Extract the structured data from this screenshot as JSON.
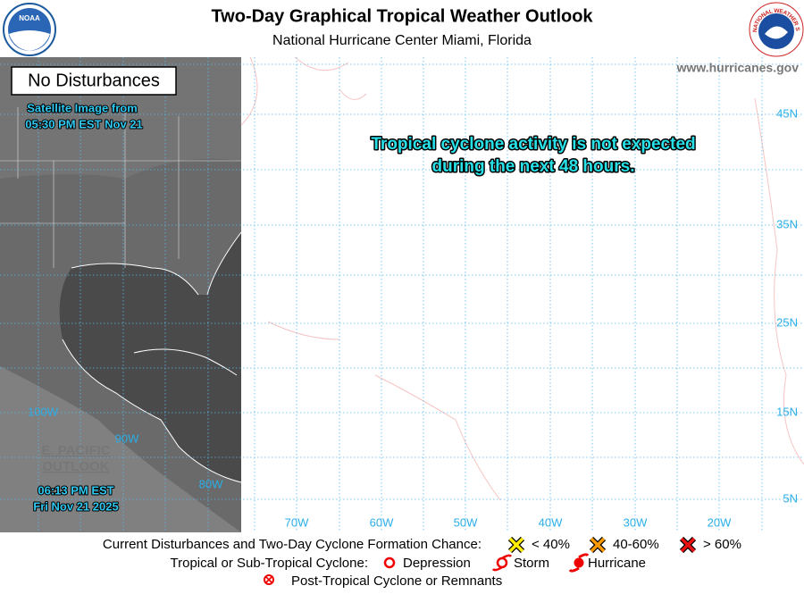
{
  "header": {
    "title": "Two-Day Graphical Tropical Weather Outlook",
    "subtitle": "National Hurricane Center  Miami, Florida",
    "noaa_logo": "NOAA",
    "nws_logo": "NATIONAL WEATHER SERVICE"
  },
  "map": {
    "status": "No Disturbances",
    "satellite_label": "Satellite Image from",
    "satellite_time": "05:30 PM EST Nov 21",
    "website": "www.hurricanes.gov",
    "message_line1": "Tropical cyclone activity is not expected",
    "message_line2": "during the next 48 hours.",
    "pacific_link_line1": "E. PACIFIC",
    "pacific_link_line2": "OUTLOOK",
    "issue_time": "06:13 PM EST",
    "issue_date": "Fri Nov 21 2025",
    "latitude_labels": [
      "45N",
      "35N",
      "25N",
      "15N",
      "5N"
    ],
    "longitude_labels": [
      "70W",
      "60W",
      "50W",
      "40W",
      "30W",
      "20W"
    ],
    "pacific_longitude_labels": [
      "100W",
      "90W",
      "80W"
    ]
  },
  "legend": {
    "row1_label": "Current Disturbances and Two-Day Cyclone Formation Chance:",
    "chance_low": "< 40%",
    "chance_mid": "40-60%",
    "chance_high": "> 60%",
    "row2_label": "Tropical or Sub-Tropical Cyclone:",
    "depression": "Depression",
    "storm": "Storm",
    "hurricane": "Hurricane",
    "post_tropical": "Post-Tropical Cyclone or Remnants"
  }
}
